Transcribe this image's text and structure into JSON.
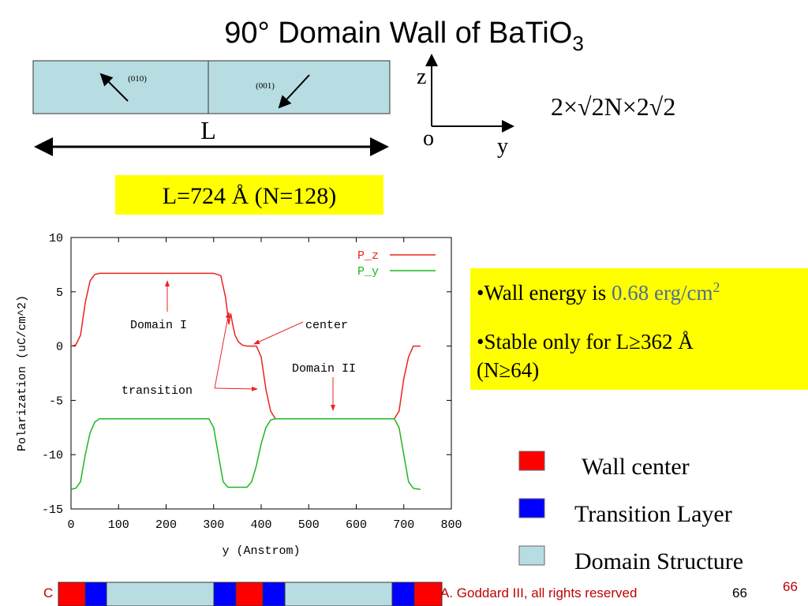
{
  "title": {
    "main": "90° Domain Wall of BaTiO",
    "sub": "3"
  },
  "diagram": {
    "left_label": "(010)",
    "right_label": "(001)",
    "length_label": "L",
    "axis_z": "z",
    "axis_origin": "o",
    "axis_y": "y",
    "formula": "2×√2N×2√2"
  },
  "size_box": "L=724 Å (N=128)",
  "bullets": [
    {
      "text": "•Wall energy is ",
      "highlight": "0.68 erg/cm",
      "sup": "2"
    },
    {
      "lines": [
        "•Stable only for L≥362 Å",
        "(N≥64)"
      ]
    }
  ],
  "legend": [
    "Wall center",
    "Transition Layer",
    "Domain Structure"
  ],
  "footer": {
    "left": "C",
    "right": "A. Goddard III, all rights reserved",
    "page": "66",
    "slide_number": "66"
  },
  "chart_data": {
    "type": "line",
    "xlabel": "y (Anstrom)",
    "ylabel": "Polarization (uC/cm^2)",
    "xlim": [
      0,
      800
    ],
    "xticks": [
      0,
      100,
      200,
      300,
      400,
      500,
      600,
      700,
      800
    ],
    "ylim": [
      -15,
      10
    ],
    "yticks": [
      -15,
      -10,
      -5,
      0,
      5,
      10
    ],
    "annotations": [
      "Domain I",
      "center",
      "transition",
      "Domain II"
    ],
    "series": [
      {
        "name": "P_z",
        "color": "#e8251f",
        "x": [
          0,
          10,
          20,
          30,
          40,
          50,
          60,
          100,
          200,
          300,
          315,
          325,
          332,
          336,
          340,
          345,
          352,
          360,
          370,
          390,
          400,
          410,
          420,
          430,
          500,
          600,
          680,
          690,
          700,
          710,
          720,
          735
        ],
        "values": [
          0,
          0.1,
          1,
          4,
          6,
          6.6,
          6.7,
          6.7,
          6.7,
          6.7,
          6.5,
          4.5,
          2,
          3,
          2,
          1,
          0.4,
          0.1,
          0,
          0,
          -1,
          -4,
          -6,
          -6.7,
          -6.7,
          -6.7,
          -6.7,
          -6,
          -3,
          -1,
          0,
          0
        ]
      },
      {
        "name": "P_y",
        "color": "#1fb51f",
        "x": [
          0,
          10,
          20,
          30,
          40,
          50,
          60,
          100,
          200,
          290,
          300,
          310,
          320,
          330,
          370,
          380,
          390,
          400,
          410,
          420,
          430,
          500,
          600,
          680,
          690,
          700,
          710,
          720,
          735
        ],
        "values": [
          -13.2,
          -13.1,
          -12.5,
          -10,
          -8,
          -7,
          -6.7,
          -6.7,
          -6.7,
          -6.7,
          -7.5,
          -10,
          -12.5,
          -13,
          -13,
          -12.5,
          -11,
          -9,
          -7.5,
          -6.8,
          -6.7,
          -6.7,
          -6.7,
          -6.7,
          -7.5,
          -10,
          -12.5,
          -13.1,
          -13.2
        ]
      }
    ]
  }
}
